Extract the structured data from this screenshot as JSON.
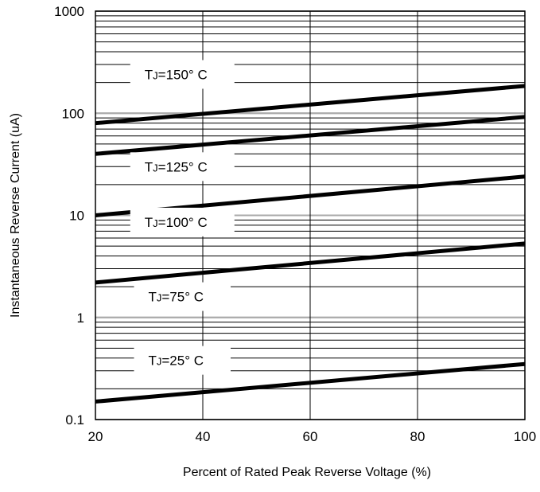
{
  "chart_data": {
    "type": "line",
    "title": "",
    "xlabel": "Percent of Rated Peak Reverse Voltage (%)",
    "ylabel": "Instantaneous Reverse Current (uA)",
    "xlim": [
      20,
      100
    ],
    "ylim": [
      0.1,
      1000
    ],
    "yscale": "log",
    "x_ticks": [
      "20",
      "40",
      "60",
      "80",
      "100"
    ],
    "y_ticks": [
      "0.1",
      "1",
      "10",
      "100",
      "1000"
    ],
    "grid": true,
    "series": [
      {
        "name": "150",
        "x": [
          20,
          100
        ],
        "y": [
          80,
          185
        ]
      },
      {
        "name": "125",
        "x": [
          20,
          100
        ],
        "y": [
          40,
          92
        ]
      },
      {
        "name": "100",
        "x": [
          20,
          100
        ],
        "y": [
          10,
          24
        ]
      },
      {
        "name": "75",
        "x": [
          20,
          100
        ],
        "y": [
          2.2,
          5.3
        ]
      },
      {
        "name": "25",
        "x": [
          20,
          100
        ],
        "y": [
          0.15,
          0.35
        ]
      }
    ],
    "annotations": [
      {
        "prefix": "T",
        "sub": "J",
        "text": "=150° C",
        "x": 35,
        "y": 240
      },
      {
        "prefix": "T",
        "sub": "J",
        "text": "=125° C",
        "x": 35,
        "y": 30
      },
      {
        "prefix": "T",
        "sub": "J",
        "text": "=100° C",
        "x": 35,
        "y": 8.6
      },
      {
        "prefix": "T",
        "sub": "J",
        "text": "=75° C",
        "x": 35,
        "y": 1.6
      },
      {
        "prefix": "T",
        "sub": "J",
        "text": "=25° C",
        "x": 35,
        "y": 0.38
      }
    ]
  }
}
